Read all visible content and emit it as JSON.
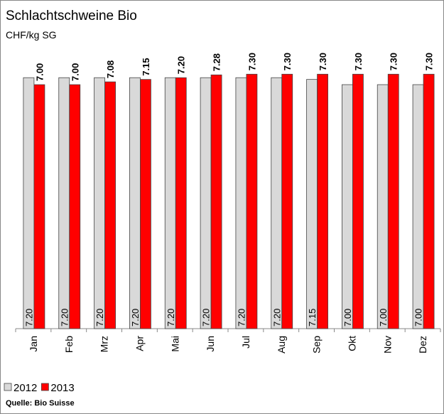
{
  "chart_data": {
    "type": "bar",
    "title": "Schlachtschweine Bio",
    "subtitle": "CHF/kg SG",
    "source": "Quelle: Bio Suisse",
    "categories": [
      "Jan",
      "Feb",
      "Mrz",
      "Apr",
      "Mai",
      "Jun",
      "Jul",
      "Aug",
      "Sep",
      "Okt",
      "Nov",
      "Dez"
    ],
    "series": [
      {
        "name": "2012",
        "color": "#d9d9d9",
        "values": [
          7.2,
          7.2,
          7.2,
          7.2,
          7.2,
          7.2,
          7.2,
          7.2,
          7.15,
          7,
          7,
          7
        ],
        "value_labels": [
          "7.20",
          "7.20",
          "7.20",
          "7.20",
          "7.20",
          "7.20",
          "7.20",
          "7.20",
          "7.15",
          "7.00",
          "7.00",
          "7.00"
        ]
      },
      {
        "name": "2013",
        "color": "#ff0000",
        "values": [
          7,
          7,
          7.08,
          7.15,
          7.2,
          7.28,
          7.3,
          7.3,
          7.3,
          7.3,
          7.3,
          7.3
        ],
        "value_labels": [
          "7.00",
          "7.00",
          "7.08",
          "7.15",
          "7.20",
          "7.28",
          "7.30",
          "7.30",
          "7.30",
          "7.30",
          "7.30",
          "7.30"
        ]
      }
    ],
    "ylim": [
      0,
      8
    ],
    "legend": "bottom-left"
  }
}
